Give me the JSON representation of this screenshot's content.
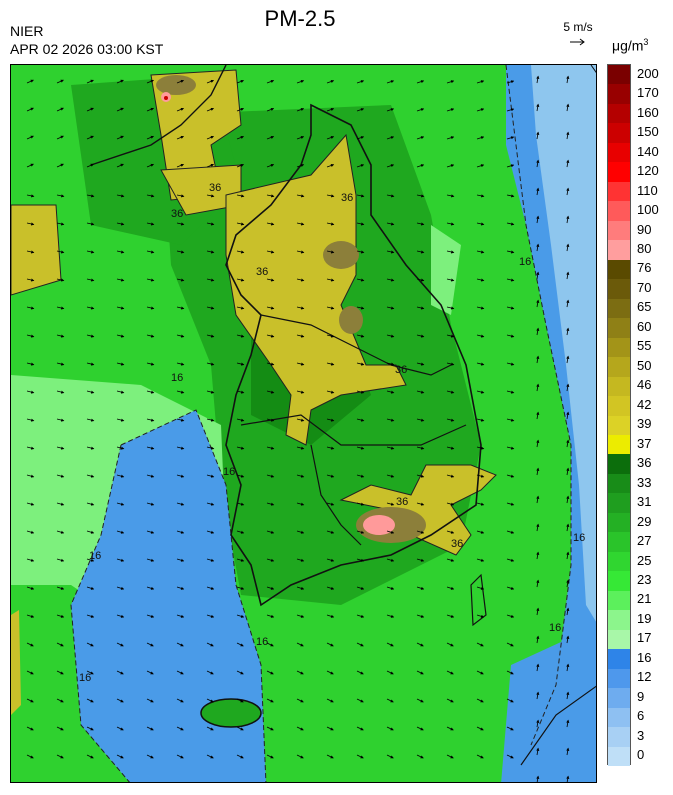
{
  "header": {
    "agency": "NIER",
    "datetime": "APR 02 2026 03:00 KST",
    "title": "PM-2.5"
  },
  "wind_reference": {
    "label": "5 m/s"
  },
  "unit": {
    "base": "μg/m",
    "exp": "3"
  },
  "colorbar": {
    "labels": [
      "200",
      "170",
      "160",
      "150",
      "140",
      "120",
      "110",
      "100",
      "90",
      "80",
      "76",
      "70",
      "65",
      "60",
      "55",
      "50",
      "46",
      "42",
      "39",
      "37",
      "36",
      "33",
      "31",
      "29",
      "27",
      "25",
      "23",
      "21",
      "19",
      "17",
      "16",
      "12",
      "9",
      "6",
      "3",
      "0"
    ],
    "colors": [
      "#7a0000",
      "#980000",
      "#b40000",
      "#cc0000",
      "#e80000",
      "#ff0000",
      "#ff3333",
      "#ff5a5a",
      "#ff7c7c",
      "#ff9e9e",
      "#5a4a00",
      "#6b5a0a",
      "#7c6d12",
      "#8f8016",
      "#a39418",
      "#b5a71c",
      "#c5b820",
      "#d2c523",
      "#dcd226",
      "#ecec00",
      "#0c6e0c",
      "#188c18",
      "#1f9e1f",
      "#24b024",
      "#2ac42a",
      "#30d630",
      "#36e836",
      "#5cf05c",
      "#8cf58c",
      "#a8f7a8",
      "#2e84e8",
      "#4e98ec",
      "#6eacef",
      "#8ec0f2",
      "#a8d0f4",
      "#bfdff7"
    ]
  },
  "contour_labels": [
    "36",
    "36",
    "36",
    "36",
    "36",
    "36",
    "36",
    "16",
    "16",
    "16",
    "16",
    "16",
    "16",
    "16",
    "16"
  ],
  "colors": {
    "sea_blue": "#4a9be8",
    "sea_light": "#8ec6ee",
    "green_bright": "#2fd12f",
    "green_mid": "#1fa81f",
    "green_dark": "#148c14",
    "green_pale": "#7df07d",
    "yellow": "#c9c02a",
    "olive": "#8c7f3a",
    "pink": "#ff9a9a"
  }
}
